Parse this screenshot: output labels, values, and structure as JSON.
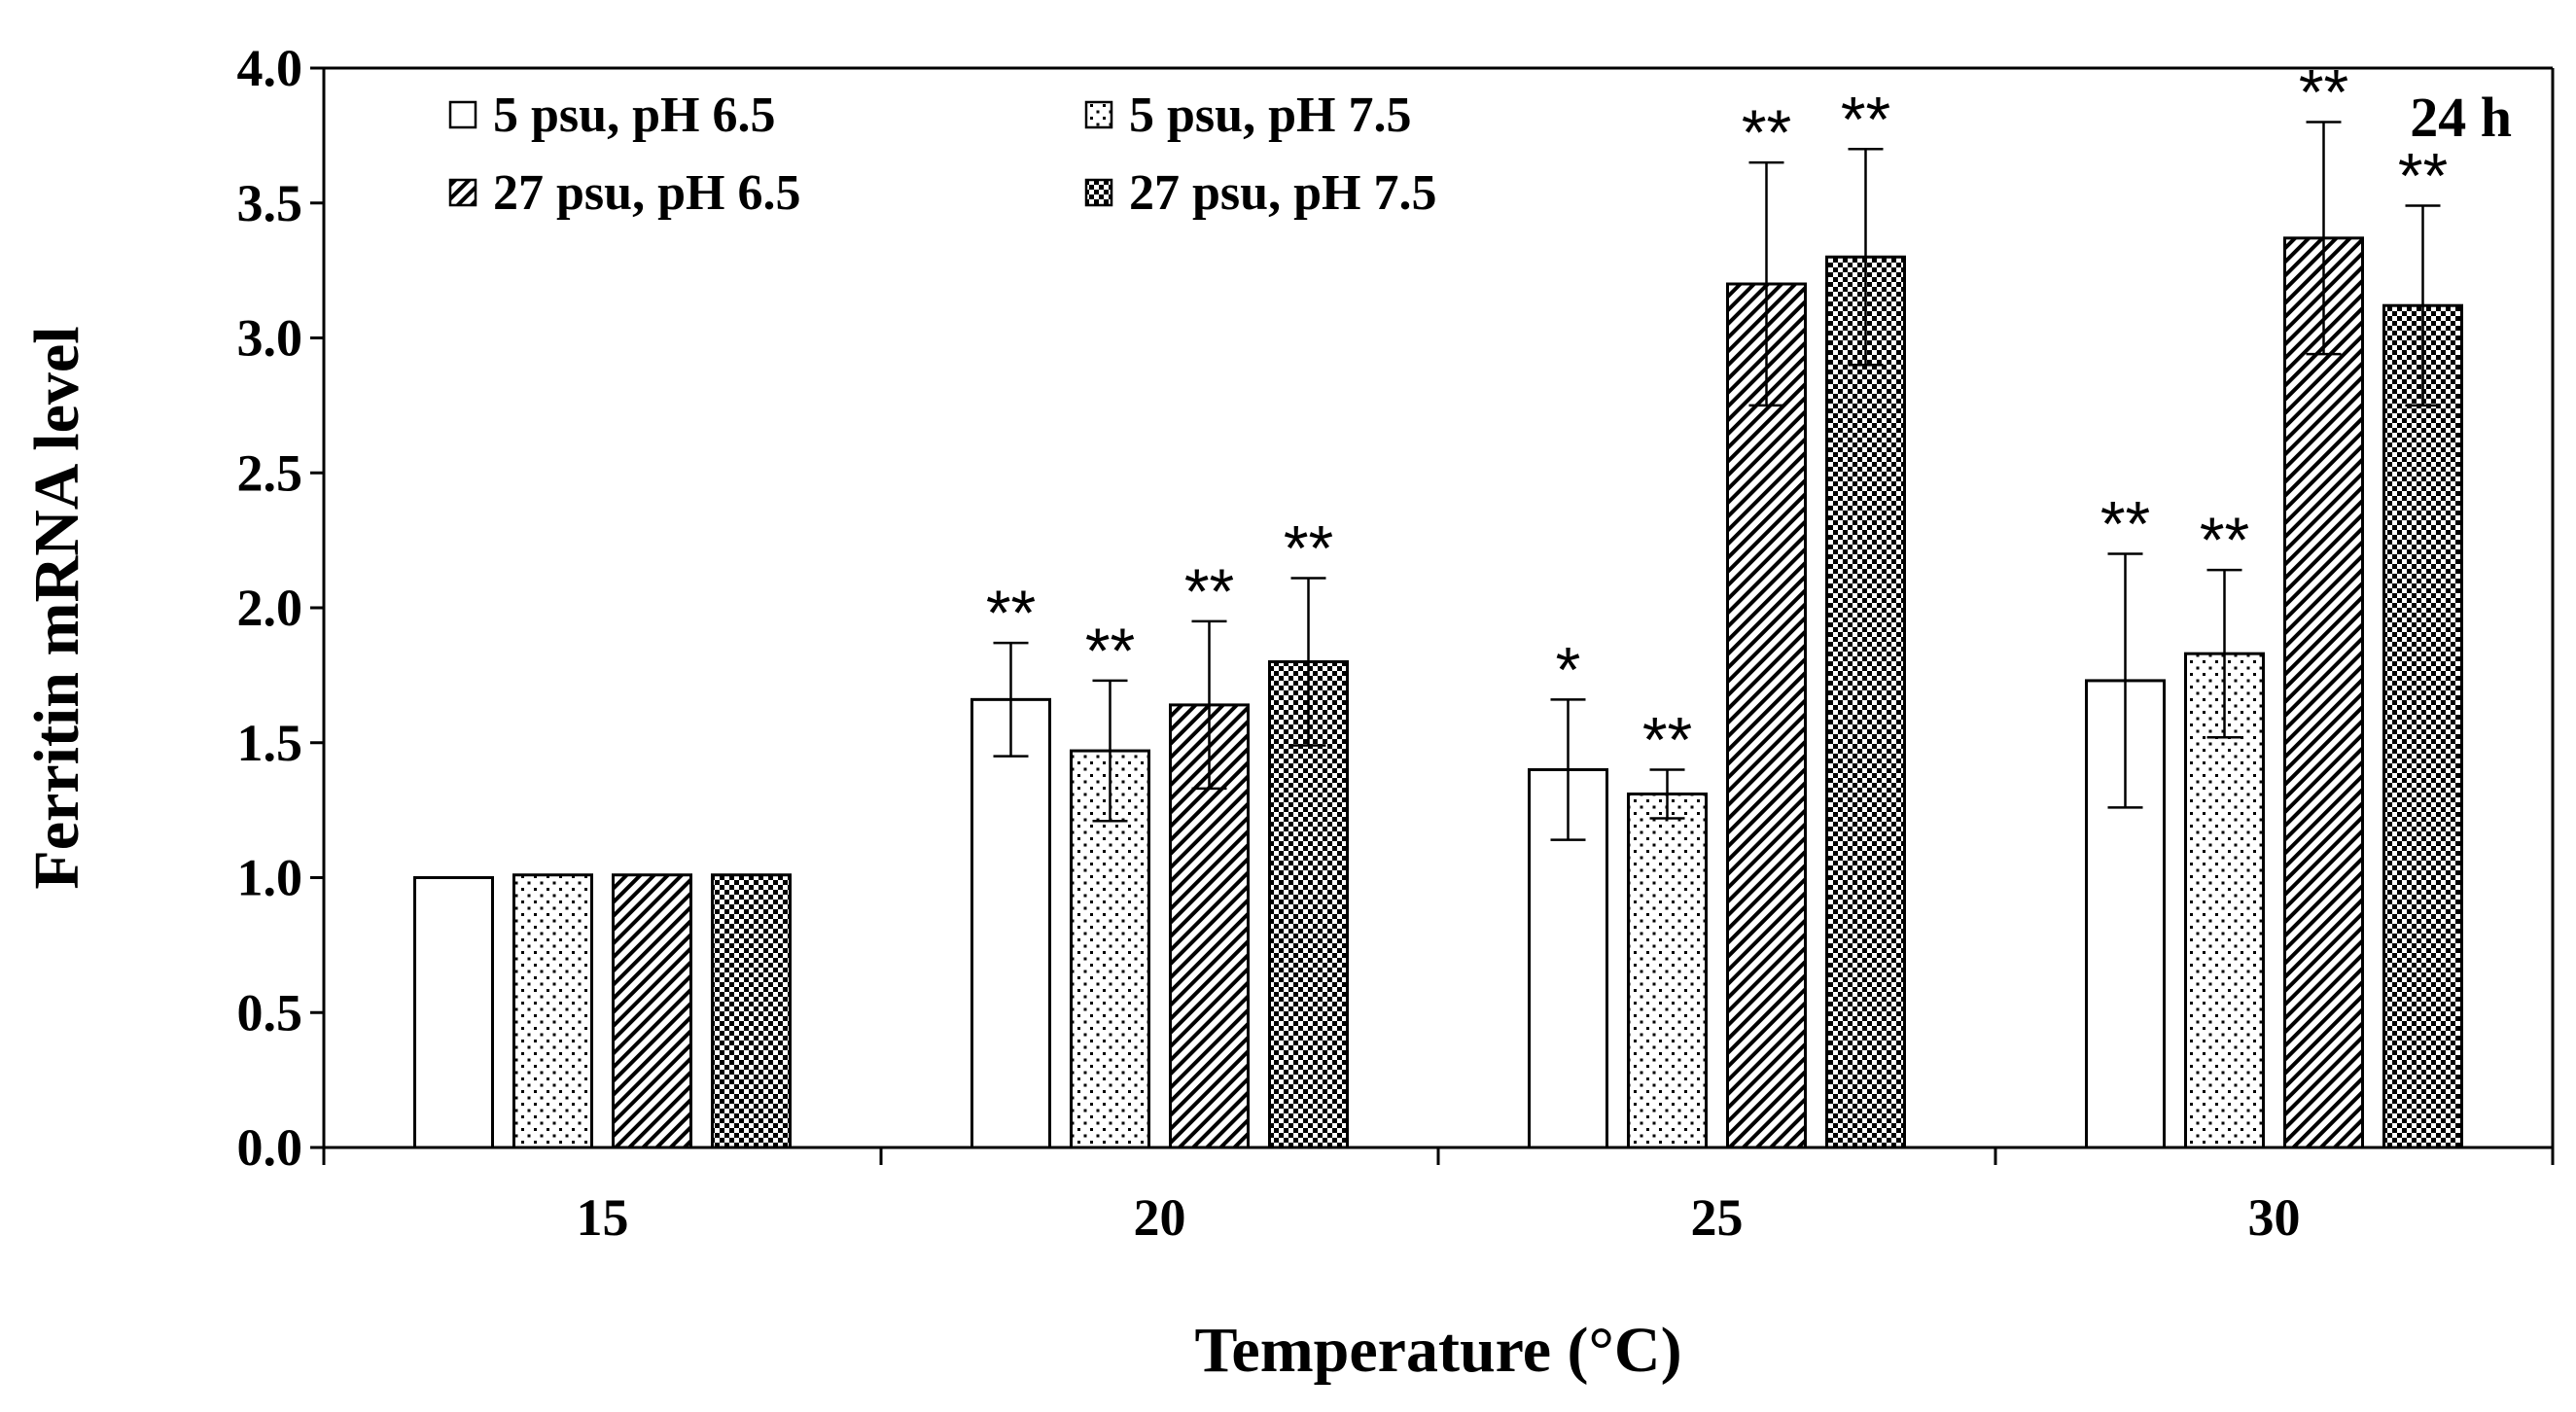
{
  "chart_data": {
    "type": "bar",
    "title": "",
    "panel_label": "24 h",
    "xlabel": "Temperature (°C)",
    "ylabel": "Ferritin mRNA level",
    "ylim": [
      0,
      4.0
    ],
    "yticks": [
      "0.0",
      "0.5",
      "1.0",
      "1.5",
      "2.0",
      "2.5",
      "3.0",
      "3.5",
      "4.0"
    ],
    "categories": [
      "15",
      "20",
      "25",
      "30"
    ],
    "series": [
      {
        "name": "5 psu, pH 6.5",
        "pattern": "blank",
        "values": [
          1.0,
          1.66,
          1.4,
          1.73
        ],
        "errors": [
          0.0,
          0.21,
          0.26,
          0.47
        ],
        "significance": [
          "",
          "**",
          "*",
          "**"
        ]
      },
      {
        "name": "5 psu, pH 7.5",
        "pattern": "dots",
        "values": [
          1.01,
          1.47,
          1.31,
          1.83
        ],
        "errors": [
          0.0,
          0.26,
          0.09,
          0.31
        ],
        "significance": [
          "",
          "**",
          "**",
          "**"
        ]
      },
      {
        "name": "27 psu, pH 6.5",
        "pattern": "diagonal",
        "values": [
          1.01,
          1.64,
          3.2,
          3.37
        ],
        "errors": [
          0.0,
          0.31,
          0.45,
          0.43
        ],
        "significance": [
          "",
          "**",
          "**",
          "**"
        ]
      },
      {
        "name": "27 psu, pH 7.5",
        "pattern": "checker",
        "values": [
          1.01,
          1.8,
          3.3,
          3.12
        ],
        "errors": [
          0.0,
          0.31,
          0.4,
          0.37
        ],
        "significance": [
          "",
          "**",
          "**",
          "**"
        ]
      }
    ],
    "legend_position": "top-left",
    "grid": false
  }
}
